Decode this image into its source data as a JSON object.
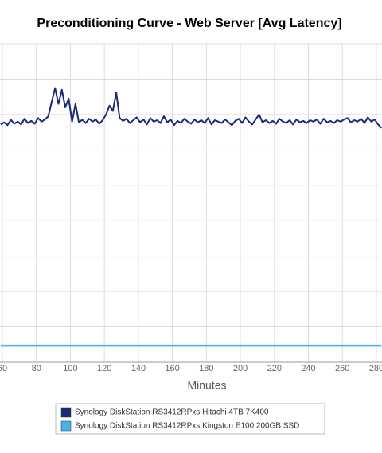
{
  "chart_data": {
    "type": "line",
    "title": "Preconditioning Curve - Web Server [Avg Latency]",
    "xlabel": "Minutes",
    "x": [
      59,
      61,
      63,
      65,
      67,
      69,
      71,
      73,
      75,
      77,
      79,
      81,
      83,
      85,
      87,
      89,
      91,
      93,
      95,
      97,
      99,
      101,
      103,
      105,
      107,
      109,
      111,
      113,
      115,
      117,
      119,
      121,
      123,
      125,
      127,
      129,
      131,
      133,
      135,
      137,
      139,
      141,
      143,
      145,
      147,
      149,
      151,
      153,
      155,
      157,
      159,
      161,
      163,
      165,
      167,
      169,
      171,
      173,
      175,
      177,
      179,
      181,
      183,
      185,
      187,
      189,
      191,
      193,
      195,
      197,
      199,
      201,
      203,
      205,
      207,
      209,
      211,
      213,
      215,
      217,
      219,
      221,
      223,
      225,
      227,
      229,
      231,
      233,
      235,
      237,
      239,
      241,
      243,
      245,
      247,
      249,
      251,
      253,
      255,
      257,
      259,
      261,
      263,
      265,
      267,
      269,
      271,
      273,
      275,
      277,
      279,
      281,
      283
    ],
    "series": [
      {
        "name": "Synology DiskStation RS3412RPxs Hitachi 4TB 7K400",
        "color": "#1a2a78",
        "values": [
          6.72,
          6.78,
          6.7,
          6.85,
          6.74,
          6.8,
          6.72,
          6.88,
          6.76,
          6.82,
          6.74,
          6.9,
          6.8,
          6.86,
          6.95,
          7.35,
          7.75,
          7.3,
          7.7,
          7.2,
          7.45,
          6.8,
          7.3,
          6.78,
          6.85,
          6.76,
          6.88,
          6.8,
          6.86,
          6.74,
          6.84,
          7.0,
          7.25,
          7.1,
          7.62,
          6.9,
          6.82,
          6.88,
          6.76,
          6.84,
          6.92,
          6.78,
          6.86,
          6.72,
          6.9,
          6.8,
          6.84,
          6.76,
          6.95,
          6.78,
          6.86,
          6.7,
          6.82,
          6.76,
          6.88,
          6.8,
          6.74,
          6.86,
          6.78,
          6.84,
          6.76,
          6.9,
          6.72,
          6.84,
          6.8,
          6.76,
          6.86,
          6.78,
          6.7,
          6.82,
          6.88,
          6.76,
          6.92,
          6.8,
          6.72,
          6.86,
          7.0,
          6.78,
          6.84,
          6.76,
          6.82,
          6.74,
          6.88,
          6.8,
          6.76,
          6.84,
          6.72,
          6.86,
          6.78,
          6.82,
          6.76,
          6.84,
          6.8,
          6.86,
          6.74,
          6.88,
          6.78,
          6.82,
          6.76,
          6.84,
          6.8,
          6.86,
          6.9,
          6.78,
          6.84,
          6.8,
          6.88,
          6.76,
          6.92,
          6.8,
          6.86,
          6.72,
          6.62
        ]
      },
      {
        "name": "Synology DiskStation RS3412RPxs Kingston E100 200GB SSD",
        "color": "#45b3e6",
        "values": [
          0.47,
          0.47,
          0.47,
          0.47,
          0.47,
          0.47,
          0.47,
          0.47,
          0.47,
          0.47,
          0.47,
          0.47,
          0.47,
          0.47,
          0.47,
          0.47,
          0.47,
          0.47,
          0.47,
          0.47,
          0.47,
          0.47,
          0.47,
          0.47,
          0.47,
          0.47,
          0.47,
          0.47,
          0.47,
          0.47,
          0.47,
          0.47,
          0.47,
          0.47,
          0.47,
          0.47,
          0.47,
          0.47,
          0.47,
          0.47,
          0.47,
          0.47,
          0.47,
          0.47,
          0.47,
          0.47,
          0.47,
          0.47,
          0.47,
          0.47,
          0.47,
          0.47,
          0.47,
          0.47,
          0.47,
          0.47,
          0.47,
          0.47,
          0.47,
          0.47,
          0.47,
          0.47,
          0.47,
          0.47,
          0.47,
          0.47,
          0.47,
          0.47,
          0.47,
          0.47,
          0.47,
          0.47,
          0.47,
          0.47,
          0.47,
          0.47,
          0.47,
          0.47,
          0.47,
          0.47,
          0.47,
          0.47,
          0.47,
          0.47,
          0.47,
          0.47,
          0.47,
          0.47,
          0.47,
          0.47,
          0.47,
          0.47,
          0.47,
          0.47,
          0.47,
          0.47,
          0.47,
          0.47,
          0.47,
          0.47,
          0.47,
          0.47,
          0.47,
          0.47,
          0.47,
          0.47,
          0.47,
          0.47,
          0.47,
          0.47,
          0.47,
          0.47,
          0.47
        ]
      }
    ],
    "xlim": [
      58.6,
      283.3
    ],
    "xticks": [
      60,
      80,
      100,
      120,
      140,
      160,
      180,
      200,
      220,
      240,
      260,
      280
    ],
    "ylim": [
      0,
      9
    ],
    "ygrid": [
      1,
      2,
      3,
      4,
      5,
      6,
      7,
      8
    ],
    "grid": true
  }
}
